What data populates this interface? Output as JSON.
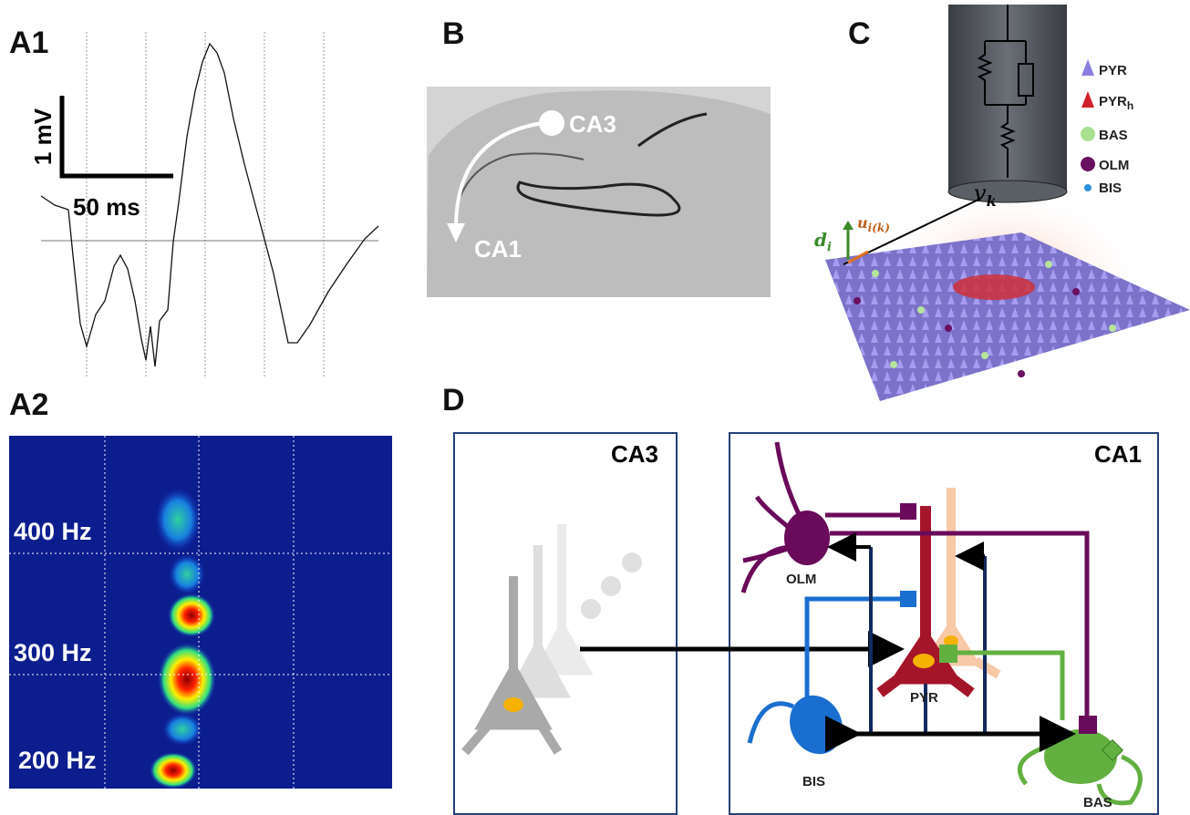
{
  "panels": {
    "a1": {
      "label": "A1",
      "scale_y": "1 mV",
      "scale_x": "50 ms"
    },
    "a2": {
      "label": "A2",
      "freq_labels": [
        "400 Hz",
        "300 Hz",
        "200 Hz"
      ]
    },
    "b": {
      "label": "B",
      "regions": [
        "CA3",
        "CA1"
      ]
    },
    "c": {
      "label": "C",
      "electrode": {
        "symbol": "v",
        "subscript": "k"
      },
      "vectors": {
        "d": {
          "symbol": "d",
          "subscript": "i"
        },
        "u": {
          "symbol": "u",
          "subscript": "i(k)"
        }
      },
      "legend": [
        {
          "label": "PYR"
        },
        {
          "label": "PYR",
          "subscript": "h"
        },
        {
          "label": "BAS"
        },
        {
          "label": "OLM"
        },
        {
          "label": "BIS"
        }
      ]
    },
    "d": {
      "label": "D",
      "regions": [
        "CA3",
        "CA1"
      ],
      "cells": [
        "OLM",
        "PYR",
        "BIS",
        "BAS"
      ]
    }
  }
}
